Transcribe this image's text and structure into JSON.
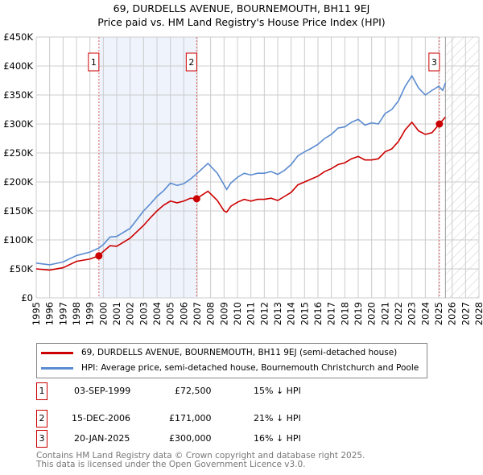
{
  "chart_data": {
    "type": "line",
    "title": "69, DURDELLS AVENUE, BOURNEMOUTH, BH11 9EJ",
    "subtitle": "Price paid vs. HM Land Registry's House Price Index (HPI)",
    "xlim": [
      1995,
      2028
    ],
    "ylim": [
      0,
      450000
    ],
    "y_ticks": [
      {
        "v": 0,
        "label": "£0"
      },
      {
        "v": 50000,
        "label": "£50K"
      },
      {
        "v": 100000,
        "label": "£100K"
      },
      {
        "v": 150000,
        "label": "£150K"
      },
      {
        "v": 200000,
        "label": "£200K"
      },
      {
        "v": 250000,
        "label": "£250K"
      },
      {
        "v": 300000,
        "label": "£300K"
      },
      {
        "v": 350000,
        "label": "£350K"
      },
      {
        "v": 400000,
        "label": "£400K"
      },
      {
        "v": 450000,
        "label": "£450K"
      }
    ],
    "x_ticks": [
      "1995",
      "1996",
      "1997",
      "1998",
      "1999",
      "2000",
      "2001",
      "2002",
      "2003",
      "2004",
      "2005",
      "2006",
      "2007",
      "2008",
      "2009",
      "2010",
      "2011",
      "2012",
      "2013",
      "2014",
      "2015",
      "2016",
      "2017",
      "2018",
      "2019",
      "2020",
      "2021",
      "2022",
      "2023",
      "2024",
      "2025",
      "2026",
      "2027",
      "2028"
    ],
    "grid": true,
    "shaded_range": [
      1999.67,
      2006.96
    ],
    "forecast_hatch_from": 2025.5,
    "series": [
      {
        "name": "69, DURDELLS AVENUE, BOURNEMOUTH, BH11 9EJ (semi-detached house)",
        "color": "#cc0000",
        "x": [
          1995,
          1996,
          1997,
          1998,
          1999,
          1999.67,
          2000,
          2000.5,
          2001,
          2002,
          2003,
          2003.5,
          2004,
          2004.5,
          2005,
          2005.5,
          2006,
          2006.5,
          2006.96,
          2007,
          2007.8,
          2008.5,
          2009,
          2009.2,
          2009.5,
          2010,
          2010.5,
          2011,
          2011.5,
          2012,
          2012.5,
          2013,
          2013.5,
          2014,
          2014.5,
          2015,
          2015.5,
          2016,
          2016.5,
          2017,
          2017.5,
          2018,
          2018.5,
          2019,
          2019.5,
          2020,
          2020.5,
          2021,
          2021.5,
          2022,
          2022.5,
          2023,
          2023.5,
          2024,
          2024.5,
          2025.05,
          2025.5
        ],
        "y": [
          50000,
          48000,
          52000,
          63000,
          67000,
          72500,
          80000,
          90000,
          89000,
          103000,
          125000,
          138000,
          150000,
          160000,
          167000,
          164000,
          167000,
          172000,
          171000,
          172000,
          184000,
          168000,
          150000,
          148000,
          158000,
          165000,
          170000,
          167000,
          170000,
          170000,
          172000,
          168000,
          175000,
          182000,
          195000,
          200000,
          205000,
          210000,
          218000,
          223000,
          230000,
          233000,
          240000,
          244000,
          238000,
          238000,
          240000,
          252000,
          257000,
          270000,
          290000,
          303000,
          288000,
          282000,
          285000,
          300000,
          312000
        ]
      },
      {
        "name": "HPI: Average price, semi-detached house, Bournemouth Christchurch and Poole",
        "color": "#5b8bd0",
        "x": [
          1995,
          1996,
          1997,
          1998,
          1999,
          1999.67,
          2000,
          2000.5,
          2001,
          2002,
          2003,
          2003.5,
          2004,
          2004.5,
          2005,
          2005.5,
          2006,
          2006.5,
          2007,
          2007.8,
          2008.5,
          2009,
          2009.2,
          2009.5,
          2010,
          2010.5,
          2011,
          2011.5,
          2012,
          2012.5,
          2013,
          2013.5,
          2014,
          2014.5,
          2015,
          2015.5,
          2016,
          2016.5,
          2017,
          2017.5,
          2018,
          2018.5,
          2019,
          2019.5,
          2020,
          2020.5,
          2021,
          2021.5,
          2022,
          2022.5,
          2023,
          2023.5,
          2024,
          2024.5,
          2025,
          2025.3,
          2025.5
        ],
        "y": [
          60000,
          57000,
          62000,
          73000,
          79000,
          86000,
          92000,
          105000,
          106000,
          120000,
          150000,
          162000,
          175000,
          185000,
          198000,
          194000,
          197000,
          205000,
          215000,
          232000,
          215000,
          195000,
          187000,
          198000,
          208000,
          215000,
          212000,
          215000,
          215000,
          218000,
          213000,
          220000,
          230000,
          245000,
          252000,
          258000,
          265000,
          275000,
          282000,
          293000,
          295000,
          303000,
          308000,
          298000,
          302000,
          300000,
          318000,
          325000,
          340000,
          365000,
          383000,
          362000,
          350000,
          358000,
          365000,
          358000,
          371000
        ]
      }
    ],
    "sales": [
      {
        "num": "1",
        "x": 1999.67,
        "y": 72500,
        "date": "03-SEP-1999",
        "price": "£72,500",
        "hpi": "15% ↓ HPI"
      },
      {
        "num": "2",
        "x": 2006.96,
        "y": 171000,
        "date": "15-DEC-2006",
        "price": "£171,000",
        "hpi": "21% ↓ HPI"
      },
      {
        "num": "3",
        "x": 2025.05,
        "y": 300000,
        "date": "20-JAN-2025",
        "price": "£300,000",
        "hpi": "16% ↓ HPI"
      }
    ]
  },
  "footer": {
    "line1": "Contains HM Land Registry data © Crown copyright and database right 2025.",
    "line2": "This data is licensed under the Open Government Licence v3.0."
  }
}
